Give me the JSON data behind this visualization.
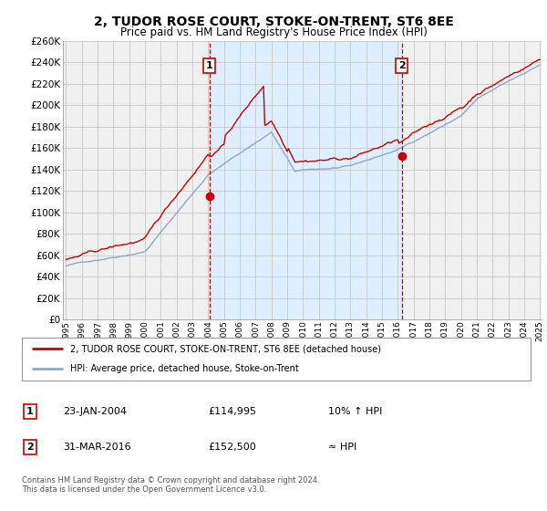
{
  "title": "2, TUDOR ROSE COURT, STOKE-ON-TRENT, ST6 8EE",
  "subtitle": "Price paid vs. HM Land Registry's House Price Index (HPI)",
  "ylim": [
    0,
    260000
  ],
  "yticks": [
    0,
    20000,
    40000,
    60000,
    80000,
    100000,
    120000,
    140000,
    160000,
    180000,
    200000,
    220000,
    240000,
    260000
  ],
  "background_color": "#ffffff",
  "plot_bg_color": "#f0f0f0",
  "shade_color": "#ddeeff",
  "grid_color": "#cccccc",
  "red_line_color": "#cc0000",
  "blue_line_color": "#88aace",
  "vline_color": "#cc0000",
  "marker1_year": 2004.07,
  "marker2_year": 2016.25,
  "marker1_price": 114995,
  "marker2_price": 152500,
  "legend_line1": "2, TUDOR ROSE COURT, STOKE-ON-TRENT, ST6 8EE (detached house)",
  "legend_line2": "HPI: Average price, detached house, Stoke-on-Trent",
  "table_row1": [
    "1",
    "23-JAN-2004",
    "£114,995",
    "10% ↑ HPI"
  ],
  "table_row2": [
    "2",
    "31-MAR-2016",
    "£152,500",
    "≈ HPI"
  ],
  "footer": "Contains HM Land Registry data © Crown copyright and database right 2024.\nThis data is licensed under the Open Government Licence v3.0.",
  "xmin": 1995.0,
  "xmax": 2025.0
}
